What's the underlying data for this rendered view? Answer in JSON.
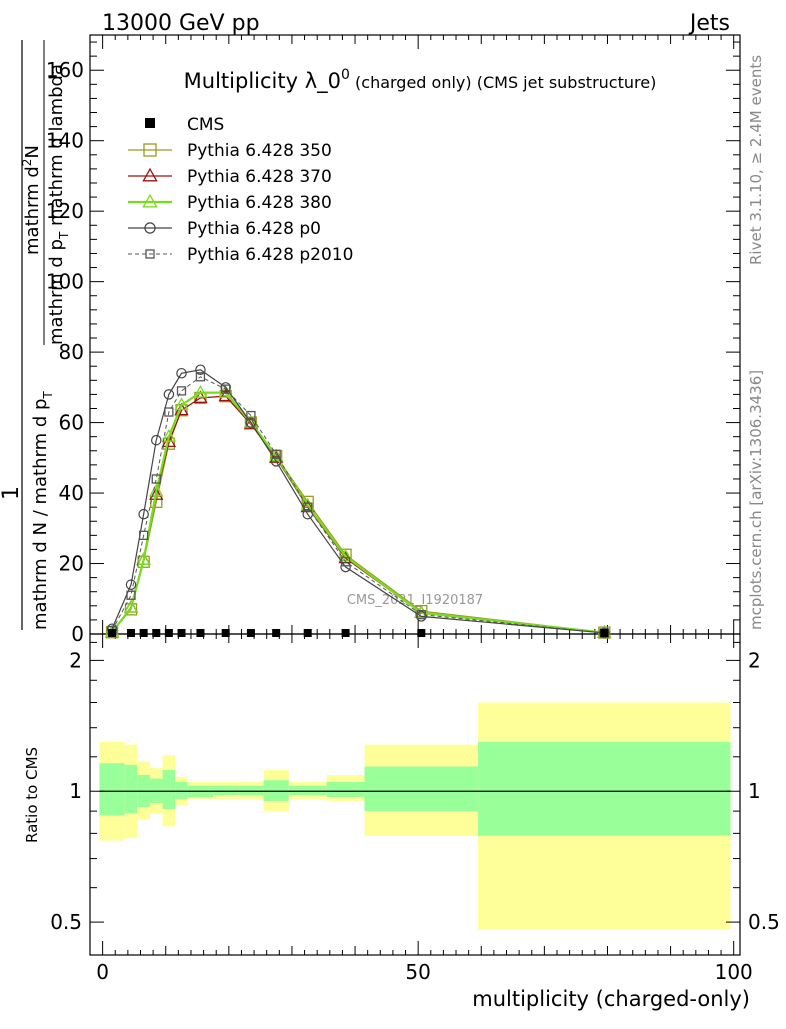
{
  "header": {
    "left": "13000 GeV pp",
    "right": "Jets"
  },
  "side_labels": {
    "rivet": "Rivet 3.1.10, ≥ 2.4M events",
    "mcplots": "mcplots.cern.ch [arXiv:1306.3436]"
  },
  "watermark": "CMS_2021_I1920187",
  "chart_data": {
    "type": "line",
    "title_main": "Multiplicity λ_0",
    "title_sup": "0",
    "title_tail": " (charged only) (CMS jet substructure)",
    "ylabel_top_numerator": "1",
    "ylabel_top_denominator": "mathrm d N / mathrm d p",
    "ylabel_top_sub": "T",
    "ylabel_top_frac_num": "mathrm d",
    "ylabel_top_frac_num_sup": "2",
    "ylabel_top_frac_num_tail": "N",
    "ylabel_top_frac_den": "mathrm d p",
    "ylabel_top_frac_den_sub": "T",
    "ylabel_top_frac_den_tail": " mathrm d lambda",
    "ylabel_bottom": "Ratio to CMS",
    "xlabel": "multiplicity (charged-only)",
    "xlim": [
      -2,
      101
    ],
    "ylim_main": [
      0,
      170
    ],
    "ylim_ratio": [
      0.42,
      2.3
    ],
    "xticks": [
      0,
      50,
      100
    ],
    "yticks_main": [
      0,
      20,
      40,
      60,
      80,
      100,
      120,
      140,
      160
    ],
    "yticks_ratio": [
      0.5,
      1,
      2
    ],
    "grid": false,
    "legend_position": "top-left",
    "cms": {
      "name": "CMS",
      "x": [
        1.5,
        4.5,
        6.5,
        8.5,
        10.5,
        12.5,
        15.5,
        19.5,
        23.5,
        27.5,
        32.5,
        38.5,
        50.5,
        79.5
      ],
      "y": [
        0,
        0,
        0,
        0,
        0,
        0,
        0,
        0,
        0,
        0,
        0,
        0,
        0,
        0
      ]
    },
    "series": [
      {
        "name": "Pythia 6.428 350",
        "color": "#9a9a20",
        "marker": "square",
        "dash": "",
        "width": 1.2,
        "x": [
          1.5,
          4.5,
          6.5,
          8.5,
          10.5,
          12.5,
          15.5,
          19.5,
          23.5,
          27.5,
          32.5,
          38.5,
          50.5,
          79.5
        ],
        "y": [
          0.5,
          7,
          20.5,
          37.5,
          54,
          63.5,
          67,
          67.5,
          60,
          50.5,
          37.5,
          22.5,
          6.5,
          0.4
        ]
      },
      {
        "name": "Pythia 6.428 370",
        "color": "#a01010",
        "marker": "triangle",
        "dash": "",
        "width": 1.2,
        "x": [
          1.5,
          4.5,
          6.5,
          8.5,
          10.5,
          12.5,
          15.5,
          19.5,
          23.5,
          27.5,
          32.5,
          38.5,
          50.5,
          79.5
        ],
        "y": [
          0.5,
          7.5,
          21,
          39.5,
          54.5,
          63.5,
          67,
          67.5,
          59.5,
          50,
          36,
          21.5,
          6,
          0.4
        ]
      },
      {
        "name": "Pythia 6.428 380",
        "color": "#78dc1e",
        "marker": "triangle",
        "dash": "",
        "width": 2.2,
        "x": [
          1.5,
          4.5,
          6.5,
          8.5,
          10.5,
          12.5,
          15.5,
          19.5,
          23.5,
          27.5,
          32.5,
          38.5,
          50.5,
          79.5
        ],
        "y": [
          0.5,
          7.5,
          21,
          40.5,
          56,
          65,
          68.5,
          68.5,
          60,
          50.5,
          36.5,
          22,
          6,
          0.4
        ]
      },
      {
        "name": "Pythia 6.428 p0",
        "color": "#444444",
        "marker": "circle",
        "dash": "",
        "width": 1.2,
        "x": [
          1.5,
          4.5,
          6.5,
          8.5,
          10.5,
          12.5,
          15.5,
          19.5,
          23.5,
          27.5,
          32.5,
          38.5,
          50.5,
          79.5
        ],
        "y": [
          1.5,
          14,
          34,
          55,
          68,
          74,
          75,
          70,
          60,
          49,
          34,
          19,
          5,
          0.3
        ]
      },
      {
        "name": "Pythia 6.428 p2010",
        "color": "#555555",
        "marker": "square",
        "dash": "4,3",
        "width": 1.0,
        "x": [
          1.5,
          4.5,
          6.5,
          8.5,
          10.5,
          12.5,
          15.5,
          19.5,
          23.5,
          27.5,
          32.5,
          38.5,
          50.5,
          79.5
        ],
        "y": [
          1,
          11,
          28,
          44,
          63,
          69,
          73,
          69.5,
          62,
          51,
          36,
          20.5,
          5.5,
          0.3
        ]
      }
    ],
    "ratio_bands": [
      {
        "x0": -0.5,
        "x1": 3.5,
        "y_lo": 0.77,
        "y_hi": 1.3,
        "g_lo": 0.88,
        "g_hi": 1.16
      },
      {
        "x0": 3.5,
        "x1": 5.5,
        "y_lo": 0.78,
        "y_hi": 1.28,
        "g_lo": 0.89,
        "g_hi": 1.15
      },
      {
        "x0": 5.5,
        "x1": 7.5,
        "y_lo": 0.86,
        "y_hi": 1.17,
        "g_lo": 0.92,
        "g_hi": 1.09
      },
      {
        "x0": 7.5,
        "x1": 9.5,
        "y_lo": 0.89,
        "y_hi": 1.13,
        "g_lo": 0.94,
        "g_hi": 1.07
      },
      {
        "x0": 9.5,
        "x1": 11.5,
        "y_lo": 0.83,
        "y_hi": 1.21,
        "g_lo": 0.91,
        "g_hi": 1.12
      },
      {
        "x0": 11.5,
        "x1": 13.5,
        "y_lo": 0.93,
        "y_hi": 1.08,
        "g_lo": 0.96,
        "g_hi": 1.05
      },
      {
        "x0": 13.5,
        "x1": 17.5,
        "y_lo": 0.96,
        "y_hi": 1.05,
        "g_lo": 0.97,
        "g_hi": 1.03
      },
      {
        "x0": 17.5,
        "x1": 21.5,
        "y_lo": 0.96,
        "y_hi": 1.05,
        "g_lo": 0.98,
        "g_hi": 1.03
      },
      {
        "x0": 21.5,
        "x1": 25.5,
        "y_lo": 0.96,
        "y_hi": 1.05,
        "g_lo": 0.98,
        "g_hi": 1.03
      },
      {
        "x0": 25.5,
        "x1": 29.5,
        "y_lo": 0.9,
        "y_hi": 1.12,
        "g_lo": 0.95,
        "g_hi": 1.06
      },
      {
        "x0": 29.5,
        "x1": 35.5,
        "y_lo": 0.96,
        "y_hi": 1.05,
        "g_lo": 0.98,
        "g_hi": 1.03
      },
      {
        "x0": 35.5,
        "x1": 41.5,
        "y_lo": 0.95,
        "y_hi": 1.09,
        "g_lo": 0.97,
        "g_hi": 1.05
      },
      {
        "x0": 41.5,
        "x1": 59.5,
        "y_lo": 0.79,
        "y_hi": 1.28,
        "g_lo": 0.9,
        "g_hi": 1.14
      },
      {
        "x0": 59.5,
        "x1": 99.5,
        "y_lo": 0.48,
        "y_hi": 1.6,
        "g_lo": 0.79,
        "g_hi": 1.3
      }
    ],
    "ratio_colors": {
      "outer": "#ffff99",
      "inner": "#99ff99",
      "line": "#000000"
    }
  }
}
